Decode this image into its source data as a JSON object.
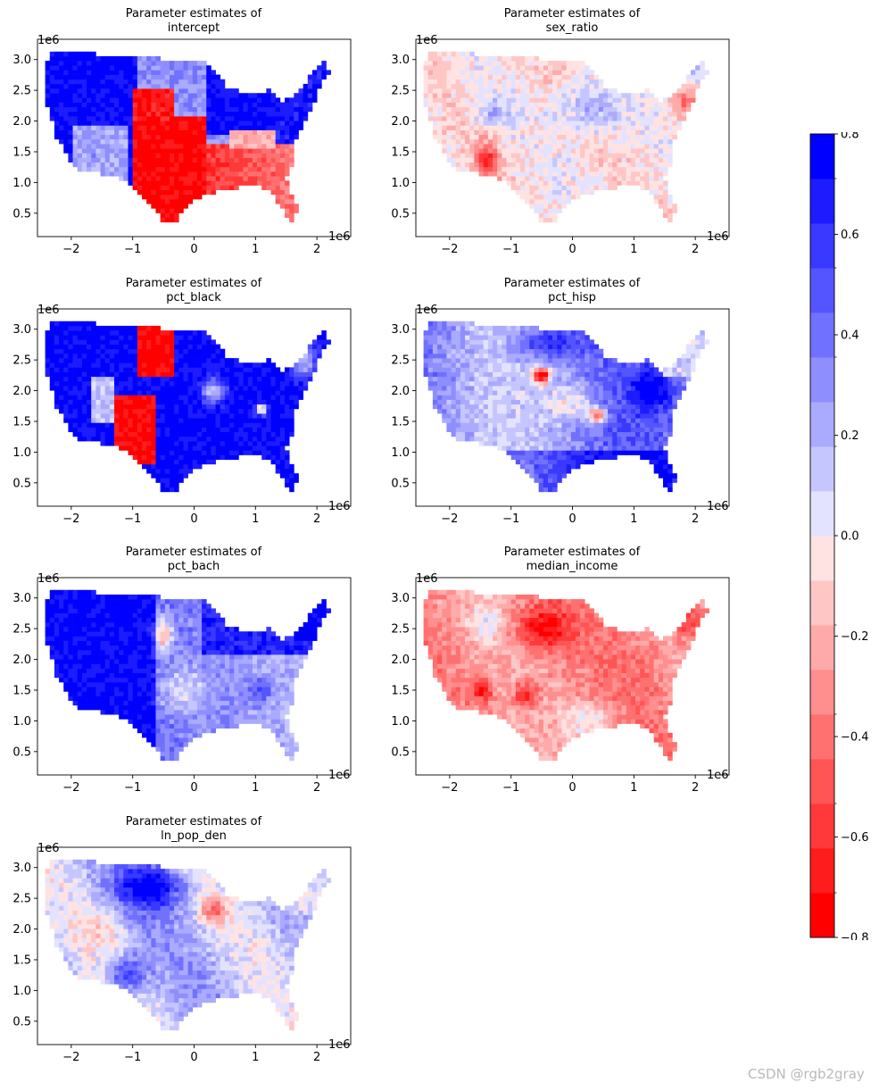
{
  "watermark": "CSDN @rgb2gray",
  "colors": {
    "blue": "#0000ff",
    "red": "#ff0000",
    "white": "#ffffff",
    "scale": [
      "#ff0000",
      "#ff1c1c",
      "#ff3939",
      "#ff5555",
      "#ff7171",
      "#ff8e8e",
      "#ffaaaa",
      "#ffc6c6",
      "#ffe3e3",
      "#e3e3ff",
      "#c6c6ff",
      "#aaaaff",
      "#8e8eff",
      "#7171ff",
      "#5555ff",
      "#3939ff",
      "#1c1cff",
      "#0000ff"
    ]
  },
  "common_axes": {
    "x_ticks": [
      "−2",
      "−1",
      "0",
      "1",
      "2"
    ],
    "x_tick_values": [
      -2,
      -1,
      0,
      1,
      2
    ],
    "y_ticks": [
      "0.5",
      "1.0",
      "1.5",
      "2.0",
      "2.5",
      "3.0"
    ],
    "y_tick_values": [
      0.5,
      1.0,
      1.5,
      2.0,
      2.5,
      3.0
    ],
    "xlim": [
      -2.55,
      2.55
    ],
    "ylim": [
      0.12,
      3.33
    ],
    "x_exponent": "1e6",
    "y_exponent": "1e6"
  },
  "colorbar": {
    "vmin": -0.8,
    "vmax": 0.8,
    "ticks": [
      0.8,
      0.6,
      0.4,
      0.2,
      0.0,
      -0.2,
      -0.4,
      -0.6,
      -0.8
    ],
    "tick_labels": [
      "0.8",
      "0.6",
      "0.4",
      "0.2",
      "0.0",
      "−0.2",
      "−0.4",
      "−0.6",
      "−0.8"
    ],
    "levels": 18
  },
  "chart_data": [
    {
      "type": "heatmap",
      "title_line1": "Parameter estimates of",
      "title_line2": "intercept",
      "pattern": "intercept"
    },
    {
      "type": "heatmap",
      "title_line1": "Parameter estimates of",
      "title_line2": "sex_ratio",
      "pattern": "sex_ratio"
    },
    {
      "type": "heatmap",
      "title_line1": "Parameter estimates of",
      "title_line2": "pct_black",
      "pattern": "pct_black"
    },
    {
      "type": "heatmap",
      "title_line1": "Parameter estimates of",
      "title_line2": "pct_hisp",
      "pattern": "pct_hisp"
    },
    {
      "type": "heatmap",
      "title_line1": "Parameter estimates of",
      "title_line2": "pct_bach",
      "pattern": "pct_bach"
    },
    {
      "type": "heatmap",
      "title_line1": "Parameter estimates of",
      "title_line2": "median_income",
      "pattern": "median_income"
    },
    {
      "type": "heatmap",
      "title_line1": "Parameter estimates of",
      "title_line2": "ln_pop_den",
      "pattern": "ln_pop_den"
    }
  ]
}
